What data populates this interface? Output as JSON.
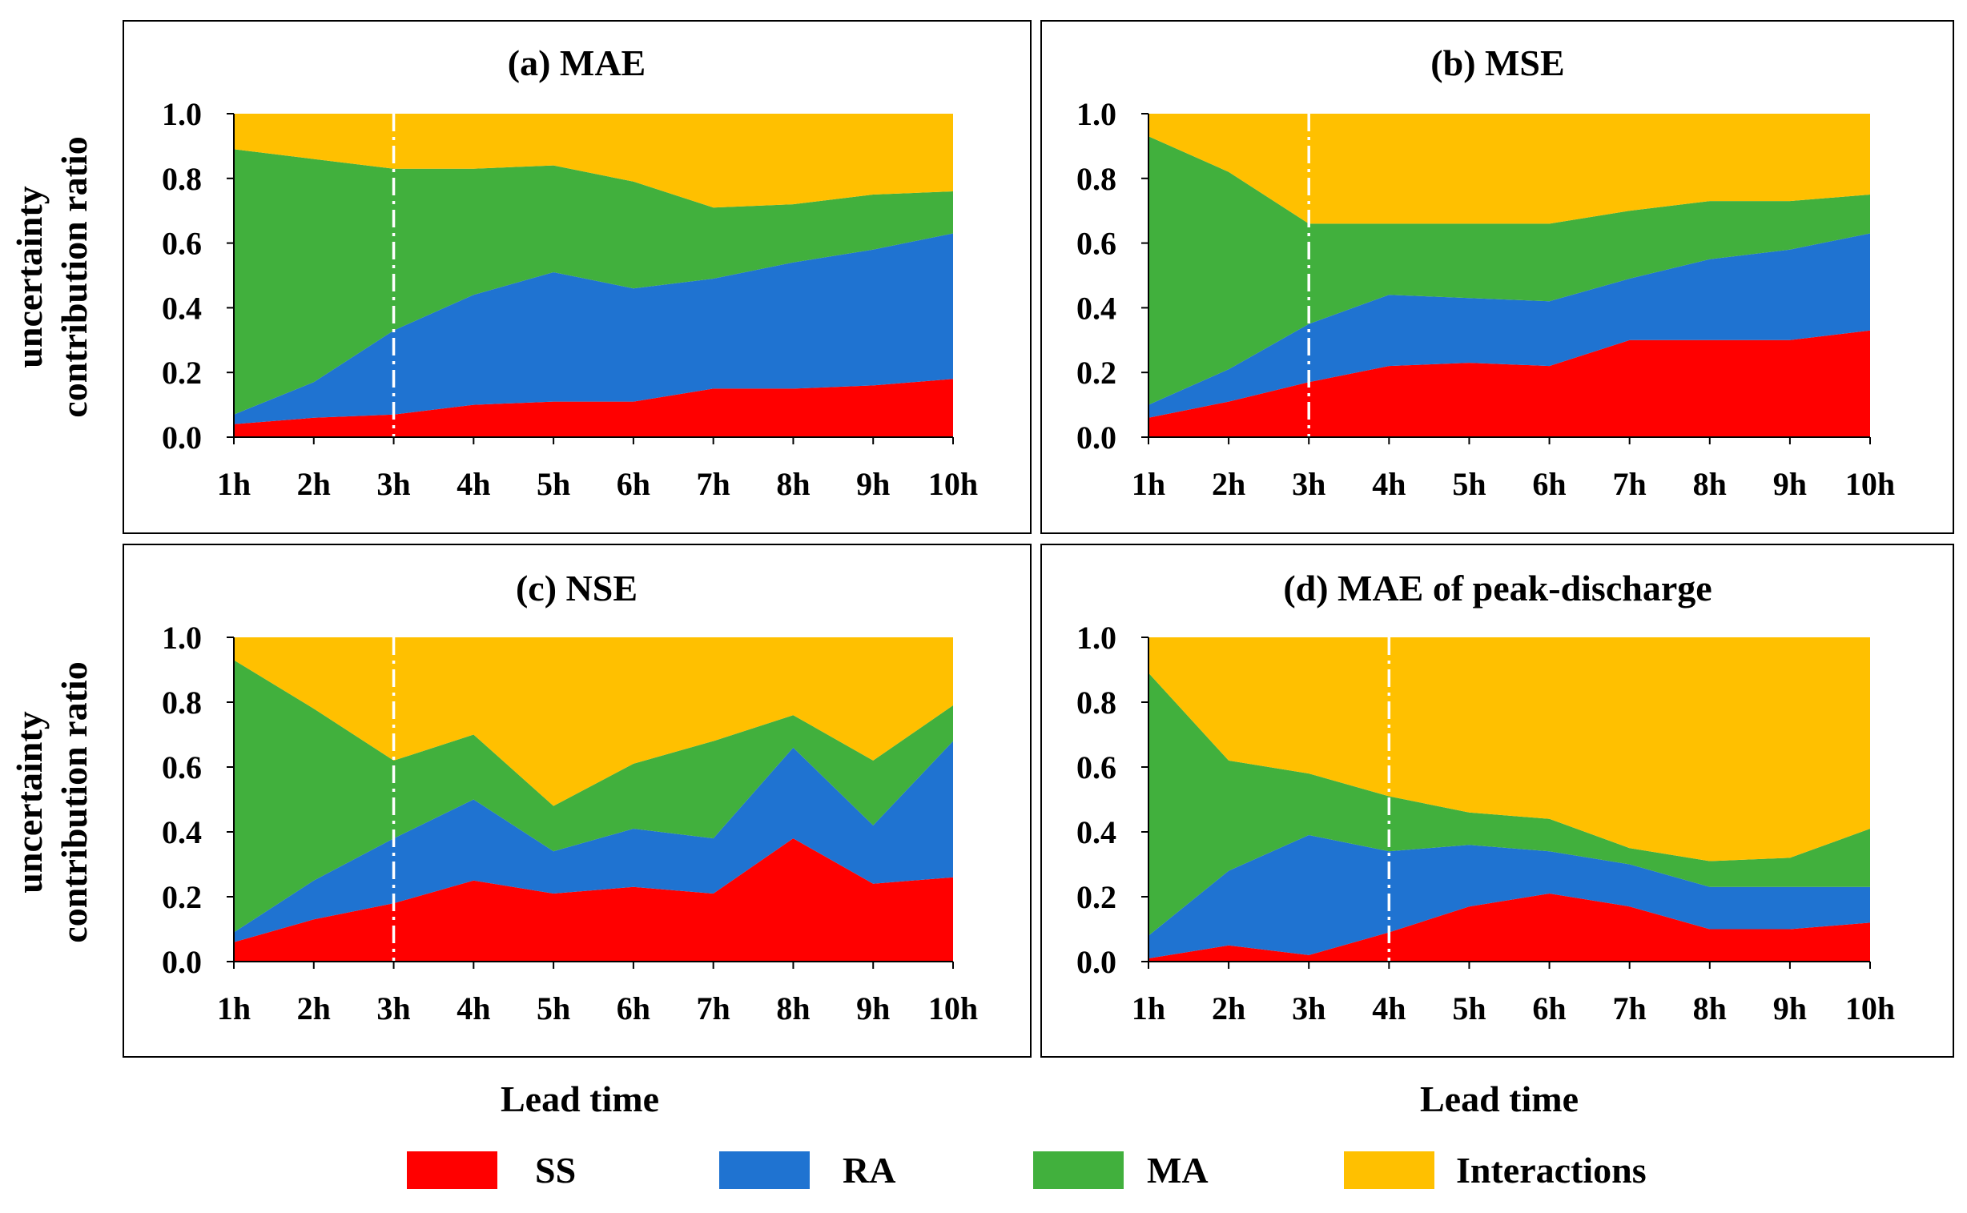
{
  "colors": {
    "SS": "#ff0000",
    "RA": "#1f73d1",
    "MA": "#41b03d",
    "Interactions": "#ffc000",
    "divider": "#ffffff"
  },
  "legend": [
    {
      "key": "SS",
      "label": "SS"
    },
    {
      "key": "RA",
      "label": "RA"
    },
    {
      "key": "MA",
      "label": "MA"
    },
    {
      "key": "Interactions",
      "label": "Interactions"
    }
  ],
  "ylabel_line1": "uncertainty",
  "ylabel_line2": "contribution ratio",
  "xlabel": "Lead time",
  "chart_data": [
    {
      "type": "area",
      "stacked": true,
      "title": "(a) MAE",
      "categories": [
        "1h",
        "2h",
        "3h",
        "4h",
        "5h",
        "6h",
        "7h",
        "8h",
        "9h",
        "10h"
      ],
      "ylim": [
        0,
        1.0
      ],
      "yticks": [
        "0.0",
        "0.2",
        "0.4",
        "0.6",
        "0.8",
        "1.0"
      ],
      "divider_at": "3h",
      "series": [
        {
          "name": "SS",
          "values": [
            0.04,
            0.06,
            0.07,
            0.1,
            0.11,
            0.11,
            0.15,
            0.15,
            0.16,
            0.18
          ]
        },
        {
          "name": "RA",
          "values": [
            0.03,
            0.11,
            0.26,
            0.34,
            0.4,
            0.35,
            0.34,
            0.39,
            0.42,
            0.45
          ]
        },
        {
          "name": "MA",
          "values": [
            0.82,
            0.69,
            0.5,
            0.39,
            0.33,
            0.33,
            0.22,
            0.18,
            0.17,
            0.13
          ]
        },
        {
          "name": "Interactions",
          "values": [
            0.11,
            0.14,
            0.17,
            0.17,
            0.16,
            0.21,
            0.29,
            0.28,
            0.25,
            0.24
          ]
        }
      ]
    },
    {
      "type": "area",
      "stacked": true,
      "title": "(b) MSE",
      "categories": [
        "1h",
        "2h",
        "3h",
        "4h",
        "5h",
        "6h",
        "7h",
        "8h",
        "9h",
        "10h"
      ],
      "ylim": [
        0,
        1.0
      ],
      "yticks": [
        "0.0",
        "0.2",
        "0.4",
        "0.6",
        "0.8",
        "1.0"
      ],
      "divider_at": "3h",
      "series": [
        {
          "name": "SS",
          "values": [
            0.06,
            0.11,
            0.17,
            0.22,
            0.23,
            0.22,
            0.3,
            0.3,
            0.3,
            0.33
          ]
        },
        {
          "name": "RA",
          "values": [
            0.04,
            0.1,
            0.18,
            0.22,
            0.2,
            0.2,
            0.19,
            0.25,
            0.28,
            0.3
          ]
        },
        {
          "name": "MA",
          "values": [
            0.83,
            0.61,
            0.31,
            0.22,
            0.23,
            0.24,
            0.21,
            0.18,
            0.15,
            0.12
          ]
        },
        {
          "name": "Interactions",
          "values": [
            0.07,
            0.18,
            0.34,
            0.34,
            0.34,
            0.34,
            0.3,
            0.27,
            0.27,
            0.25
          ]
        }
      ]
    },
    {
      "type": "area",
      "stacked": true,
      "title": "(c) NSE",
      "categories": [
        "1h",
        "2h",
        "3h",
        "4h",
        "5h",
        "6h",
        "7h",
        "8h",
        "9h",
        "10h"
      ],
      "ylim": [
        0,
        1.0
      ],
      "yticks": [
        "0.0",
        "0.2",
        "0.4",
        "0.6",
        "0.8",
        "1.0"
      ],
      "divider_at": "3h",
      "series": [
        {
          "name": "SS",
          "values": [
            0.06,
            0.13,
            0.18,
            0.25,
            0.21,
            0.23,
            0.21,
            0.38,
            0.24,
            0.26
          ]
        },
        {
          "name": "RA",
          "values": [
            0.03,
            0.12,
            0.2,
            0.25,
            0.13,
            0.18,
            0.17,
            0.28,
            0.18,
            0.42
          ]
        },
        {
          "name": "MA",
          "values": [
            0.84,
            0.53,
            0.24,
            0.2,
            0.14,
            0.2,
            0.3,
            0.1,
            0.2,
            0.11
          ]
        },
        {
          "name": "Interactions",
          "values": [
            0.07,
            0.22,
            0.38,
            0.3,
            0.52,
            0.39,
            0.32,
            0.24,
            0.38,
            0.21
          ]
        }
      ]
    },
    {
      "type": "area",
      "stacked": true,
      "title": "(d) MAE of peak-discharge",
      "categories": [
        "1h",
        "2h",
        "3h",
        "4h",
        "5h",
        "6h",
        "7h",
        "8h",
        "9h",
        "10h"
      ],
      "ylim": [
        0,
        1.0
      ],
      "yticks": [
        "0.0",
        "0.2",
        "0.4",
        "0.6",
        "0.8",
        "1.0"
      ],
      "divider_at": "4h",
      "series": [
        {
          "name": "SS",
          "values": [
            0.01,
            0.05,
            0.02,
            0.09,
            0.17,
            0.21,
            0.17,
            0.1,
            0.1,
            0.12
          ]
        },
        {
          "name": "RA",
          "values": [
            0.07,
            0.23,
            0.37,
            0.25,
            0.19,
            0.13,
            0.13,
            0.13,
            0.13,
            0.11
          ]
        },
        {
          "name": "MA",
          "values": [
            0.81,
            0.34,
            0.19,
            0.17,
            0.1,
            0.1,
            0.05,
            0.08,
            0.09,
            0.18
          ]
        },
        {
          "name": "Interactions",
          "values": [
            0.11,
            0.38,
            0.42,
            0.49,
            0.54,
            0.56,
            0.65,
            0.69,
            0.68,
            0.59
          ]
        }
      ]
    }
  ]
}
